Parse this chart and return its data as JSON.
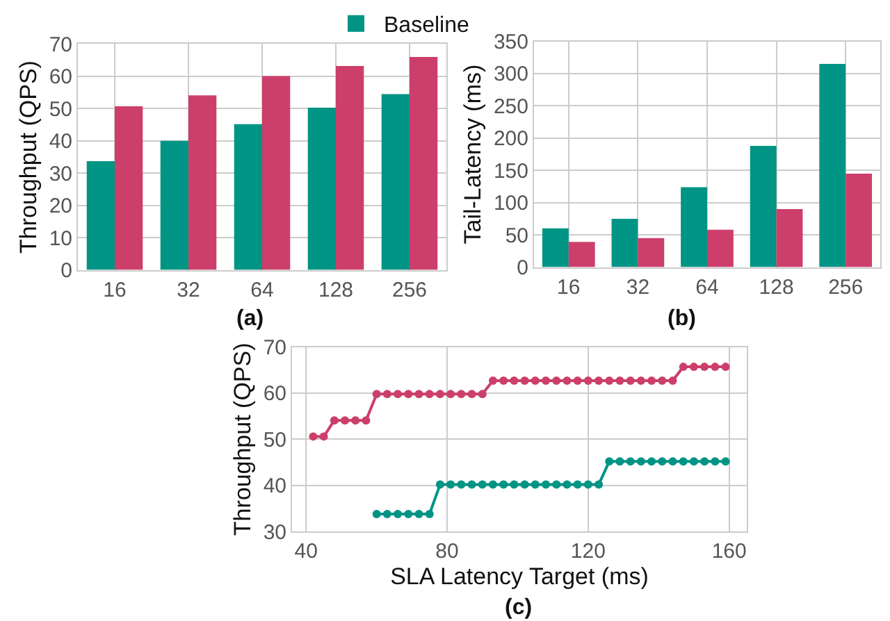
{
  "chart_data": [
    {
      "type": "bar",
      "ylabel": "Throughput (QPS)",
      "categories": [
        "16",
        "32",
        "64",
        "128",
        "256"
      ],
      "ylim": [
        0,
        70
      ],
      "yticks": [
        0,
        10,
        20,
        30,
        40,
        50,
        60,
        70
      ],
      "grid": true,
      "legend": "top",
      "annotations": [
        "(a)"
      ],
      "series": [
        {
          "name": "Baseline",
          "color": "#009485",
          "values": [
            33.7,
            40,
            45.2,
            50.3,
            54.5
          ]
        },
        {
          "color": "#cc3f6b",
          "values": [
            50.7,
            54.1,
            60.1,
            63.2,
            66
          ]
        }
      ]
    },
    {
      "type": "bar",
      "ylabel": "Tail-Latency (ms)",
      "categories": [
        "16",
        "32",
        "64",
        "128",
        "256"
      ],
      "ylim": [
        0,
        350
      ],
      "yticks": [
        0,
        50,
        100,
        150,
        200,
        250,
        300,
        350
      ],
      "grid": true,
      "annotations": [
        "(b)"
      ],
      "series": [
        {
          "color": "#009485",
          "values": [
            60,
            75,
            124,
            188,
            315
          ]
        },
        {
          "color": "#cc3f6b",
          "values": [
            39,
            45,
            58,
            90,
            145
          ]
        }
      ]
    },
    {
      "type": "line",
      "xlabel": "SLA Latency Target (ms)",
      "ylabel": "Throughput (QPS)",
      "xlim": [
        36,
        165
      ],
      "xticks": [
        40,
        80,
        120,
        160
      ],
      "ylim": [
        30,
        70
      ],
      "yticks": [
        30,
        40,
        50,
        60,
        70
      ],
      "grid": true,
      "marker": "circle",
      "annotations": [
        "(c)"
      ],
      "series": [
        {
          "color": "#cc3f6b",
          "x": [
            42,
            45,
            48,
            51,
            54,
            57,
            60,
            63,
            66,
            69,
            72,
            75,
            78,
            81,
            84,
            87,
            90,
            93,
            96,
            99,
            102,
            105,
            108,
            111,
            114,
            117,
            120,
            123,
            126,
            129,
            132,
            135,
            138,
            141,
            144,
            147,
            150,
            153,
            156,
            159
          ],
          "values": [
            50.6,
            50.6,
            54.1,
            54.1,
            54.1,
            54.1,
            59.8,
            59.8,
            59.8,
            59.8,
            59.8,
            59.8,
            59.8,
            59.8,
            59.8,
            59.8,
            59.8,
            62.7,
            62.7,
            62.7,
            62.7,
            62.7,
            62.7,
            62.7,
            62.7,
            62.7,
            62.7,
            62.7,
            62.7,
            62.7,
            62.7,
            62.7,
            62.7,
            62.7,
            62.7,
            65.7,
            65.7,
            65.7,
            65.7,
            65.7
          ]
        },
        {
          "color": "#009485",
          "x": [
            60,
            63,
            66,
            69,
            72,
            75,
            78,
            81,
            84,
            87,
            90,
            93,
            96,
            99,
            102,
            105,
            108,
            111,
            114,
            117,
            120,
            123,
            126,
            129,
            132,
            135,
            138,
            141,
            144,
            147,
            150,
            153,
            156,
            159
          ],
          "values": [
            33.8,
            33.8,
            33.8,
            33.8,
            33.8,
            33.8,
            40.2,
            40.2,
            40.2,
            40.2,
            40.2,
            40.2,
            40.2,
            40.2,
            40.2,
            40.2,
            40.2,
            40.2,
            40.2,
            40.2,
            40.2,
            40.2,
            45.2,
            45.2,
            45.2,
            45.2,
            45.2,
            45.2,
            45.2,
            45.2,
            45.2,
            45.2,
            45.2,
            45.2
          ]
        }
      ]
    }
  ]
}
